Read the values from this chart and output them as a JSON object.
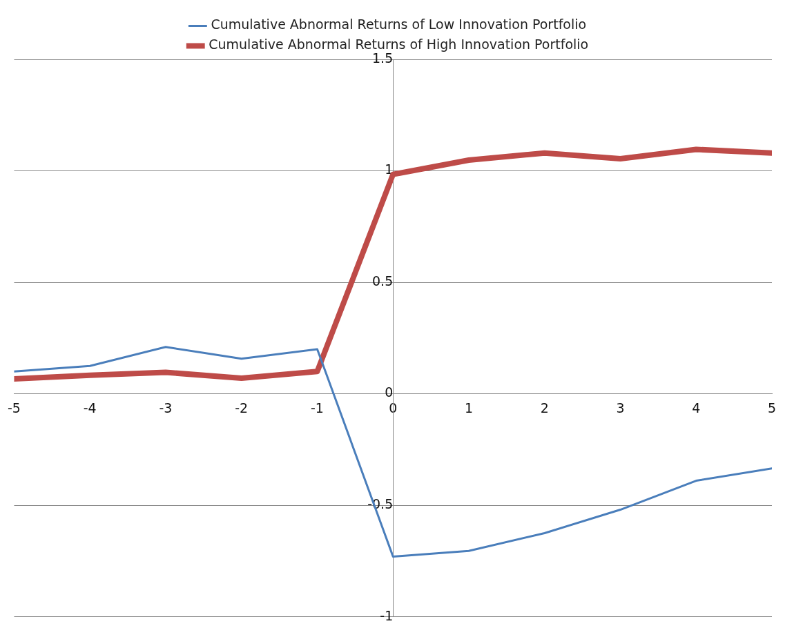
{
  "chart_data": {
    "type": "line",
    "x": [
      -5,
      -4,
      -3,
      -2,
      -1,
      0,
      1,
      2,
      3,
      4,
      5
    ],
    "series": [
      {
        "name": "Cumulative Abnormal Returns of Low Innovation Portfolio",
        "color": "#4a7ebb",
        "values": [
          0.1,
          0.125,
          0.21,
          0.157,
          0.2,
          -0.73,
          -0.705,
          -0.625,
          -0.52,
          -0.39,
          -0.335
        ]
      },
      {
        "name": "Cumulative Abnormal Returns of High Innovation Portfolio",
        "color": "#be4b48",
        "values": [
          0.067,
          0.083,
          0.096,
          0.07,
          0.1,
          0.984,
          1.048,
          1.08,
          1.054,
          1.096,
          1.08
        ]
      }
    ],
    "xlim": [
      -5,
      5
    ],
    "xticks": [
      -5,
      -4,
      -3,
      -2,
      -1,
      0,
      1,
      2,
      3,
      4,
      5
    ],
    "ylim": [
      -1,
      1.5
    ],
    "yticks": [
      -1,
      -0.5,
      0,
      0.5,
      1,
      1.5
    ],
    "grid": "y",
    "legend": "top",
    "marker": "none",
    "line_style": "solid"
  }
}
